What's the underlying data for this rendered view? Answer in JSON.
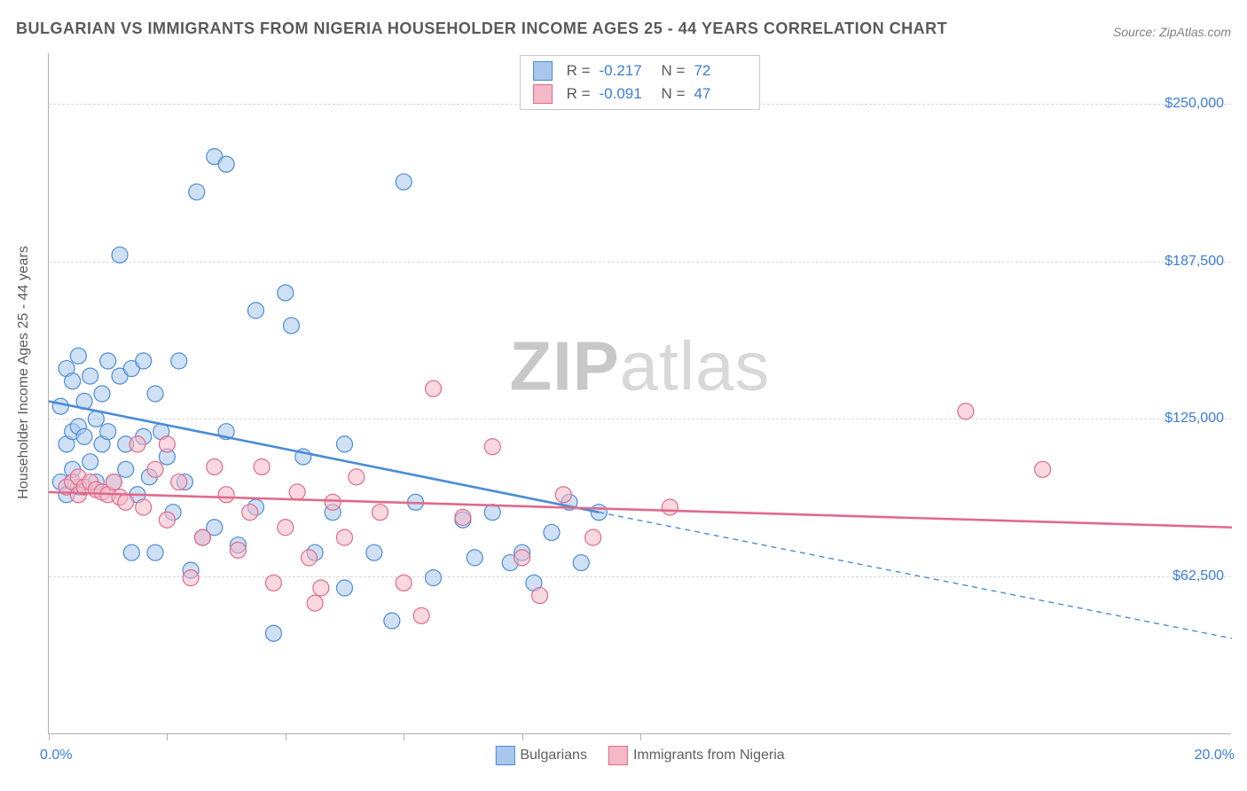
{
  "title": "BULGARIAN VS IMMIGRANTS FROM NIGERIA HOUSEHOLDER INCOME AGES 25 - 44 YEARS CORRELATION CHART",
  "source": "Source: ZipAtlas.com",
  "y_axis_label": "Householder Income Ages 25 - 44 years",
  "watermark_bold": "ZIP",
  "watermark_rest": "atlas",
  "chart": {
    "type": "scatter-with-trendlines",
    "background_color": "#ffffff",
    "grid_color": "#d8d8d8",
    "axis_color": "#b0b0b0",
    "text_color": "#5a5a5a",
    "value_color": "#3b7dd8",
    "xlim": [
      0,
      20
    ],
    "ylim": [
      0,
      270000
    ],
    "y_grid_values": [
      62500,
      125000,
      187500,
      250000
    ],
    "y_tick_labels": [
      "$62,500",
      "$125,000",
      "$187,500",
      "$250,000"
    ],
    "x_ticks": [
      0,
      2,
      4,
      6,
      8,
      10
    ],
    "x_label_min": "0.0%",
    "x_label_max": "20.0%",
    "marker_radius": 9,
    "marker_stroke_width": 1.2,
    "trend_line_width": 2.6,
    "series": [
      {
        "name": "Bulgarians",
        "fill": "#a8c7ec",
        "fill_opacity": 0.55,
        "stroke": "#4b8cd6",
        "R": "-0.217",
        "N": "72",
        "trend": {
          "x1": 0,
          "y1": 132000,
          "x2": 9.3,
          "y2": 88000,
          "ext_x2": 20,
          "ext_y2": 38000
        },
        "points": [
          [
            0.2,
            100000
          ],
          [
            0.2,
            130000
          ],
          [
            0.3,
            95000
          ],
          [
            0.3,
            145000
          ],
          [
            0.3,
            115000
          ],
          [
            0.4,
            120000
          ],
          [
            0.4,
            105000
          ],
          [
            0.4,
            140000
          ],
          [
            0.5,
            150000
          ],
          [
            0.5,
            122000
          ],
          [
            0.5,
            98000
          ],
          [
            0.6,
            118000
          ],
          [
            0.6,
            132000
          ],
          [
            0.7,
            142000
          ],
          [
            0.7,
            108000
          ],
          [
            0.8,
            100000
          ],
          [
            0.8,
            125000
          ],
          [
            0.9,
            115000
          ],
          [
            0.9,
            135000
          ],
          [
            1.0,
            120000
          ],
          [
            1.0,
            148000
          ],
          [
            1.1,
            100000
          ],
          [
            1.2,
            190000
          ],
          [
            1.2,
            142000
          ],
          [
            1.3,
            115000
          ],
          [
            1.3,
            105000
          ],
          [
            1.4,
            145000
          ],
          [
            1.5,
            95000
          ],
          [
            1.6,
            148000
          ],
          [
            1.6,
            118000
          ],
          [
            1.7,
            102000
          ],
          [
            1.8,
            135000
          ],
          [
            1.8,
            72000
          ],
          [
            1.9,
            120000
          ],
          [
            2.0,
            110000
          ],
          [
            2.1,
            88000
          ],
          [
            2.2,
            148000
          ],
          [
            2.3,
            100000
          ],
          [
            2.5,
            215000
          ],
          [
            2.6,
            78000
          ],
          [
            2.8,
            229000
          ],
          [
            2.8,
            82000
          ],
          [
            3.0,
            226000
          ],
          [
            3.2,
            75000
          ],
          [
            3.5,
            168000
          ],
          [
            3.5,
            90000
          ],
          [
            3.8,
            40000
          ],
          [
            4.0,
            175000
          ],
          [
            4.1,
            162000
          ],
          [
            4.3,
            110000
          ],
          [
            4.5,
            72000
          ],
          [
            4.8,
            88000
          ],
          [
            5.0,
            115000
          ],
          [
            5.0,
            58000
          ],
          [
            5.5,
            72000
          ],
          [
            5.8,
            45000
          ],
          [
            6.0,
            219000
          ],
          [
            6.2,
            92000
          ],
          [
            6.5,
            62000
          ],
          [
            7.0,
            85000
          ],
          [
            7.2,
            70000
          ],
          [
            7.5,
            88000
          ],
          [
            7.8,
            68000
          ],
          [
            8.0,
            72000
          ],
          [
            8.2,
            60000
          ],
          [
            8.5,
            80000
          ],
          [
            8.8,
            92000
          ],
          [
            9.0,
            68000
          ],
          [
            9.3,
            88000
          ],
          [
            1.4,
            72000
          ],
          [
            2.4,
            65000
          ],
          [
            3.0,
            120000
          ]
        ]
      },
      {
        "name": "Immigrants from Nigeria",
        "fill": "#f4b8c6",
        "fill_opacity": 0.55,
        "stroke": "#e06a8c",
        "R": "-0.091",
        "N": "47",
        "trend": {
          "x1": 0,
          "y1": 96000,
          "x2": 20,
          "y2": 82000
        },
        "points": [
          [
            0.3,
            98000
          ],
          [
            0.4,
            100000
          ],
          [
            0.5,
            95000
          ],
          [
            0.5,
            102000
          ],
          [
            0.6,
            98000
          ],
          [
            0.7,
            100000
          ],
          [
            0.8,
            97000
          ],
          [
            0.9,
            96000
          ],
          [
            1.0,
            95000
          ],
          [
            1.1,
            100000
          ],
          [
            1.2,
            94000
          ],
          [
            1.3,
            92000
          ],
          [
            1.5,
            115000
          ],
          [
            1.6,
            90000
          ],
          [
            1.8,
            105000
          ],
          [
            2.0,
            85000
          ],
          [
            2.0,
            115000
          ],
          [
            2.2,
            100000
          ],
          [
            2.4,
            62000
          ],
          [
            2.6,
            78000
          ],
          [
            2.8,
            106000
          ],
          [
            3.0,
            95000
          ],
          [
            3.2,
            73000
          ],
          [
            3.4,
            88000
          ],
          [
            3.6,
            106000
          ],
          [
            3.8,
            60000
          ],
          [
            4.0,
            82000
          ],
          [
            4.2,
            96000
          ],
          [
            4.4,
            70000
          ],
          [
            4.6,
            58000
          ],
          [
            4.8,
            92000
          ],
          [
            5.0,
            78000
          ],
          [
            5.2,
            102000
          ],
          [
            5.6,
            88000
          ],
          [
            6.0,
            60000
          ],
          [
            6.3,
            47000
          ],
          [
            6.5,
            137000
          ],
          [
            7.0,
            86000
          ],
          [
            7.5,
            114000
          ],
          [
            8.0,
            70000
          ],
          [
            8.3,
            55000
          ],
          [
            8.7,
            95000
          ],
          [
            9.2,
            78000
          ],
          [
            10.5,
            90000
          ],
          [
            15.5,
            128000
          ],
          [
            16.8,
            105000
          ],
          [
            4.5,
            52000
          ]
        ]
      }
    ],
    "bottom_legend": [
      {
        "label": "Bulgarians",
        "fill": "#a8c7ec",
        "stroke": "#4b8cd6"
      },
      {
        "label": "Immigrants from Nigeria",
        "fill": "#f4b8c6",
        "stroke": "#e06a8c"
      }
    ]
  }
}
